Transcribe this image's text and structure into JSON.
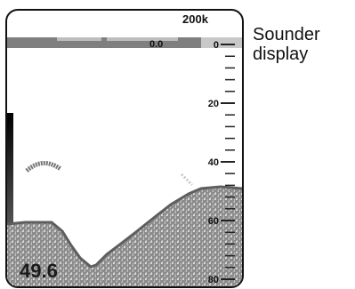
{
  "status_bar": {
    "frequency": "200k",
    "speed": "0.0"
  },
  "depth_readout": "49.6",
  "depth_scale": {
    "labels": [
      "0",
      "20",
      "40",
      "60",
      "80"
    ],
    "range": [
      0,
      80
    ],
    "minor_tick_interval": 4,
    "major_tick_interval": 20
  },
  "side_label": {
    "line1": "Sounder",
    "line2": "display"
  },
  "colors": {
    "status_bar": "#7f7f7f",
    "status_bar_light": "#dcdcdc",
    "seabed": "#8a8a8a",
    "seabed_dark": "#6a6a6a",
    "fish_mark": "#777777",
    "gain_bar": "#000000"
  }
}
